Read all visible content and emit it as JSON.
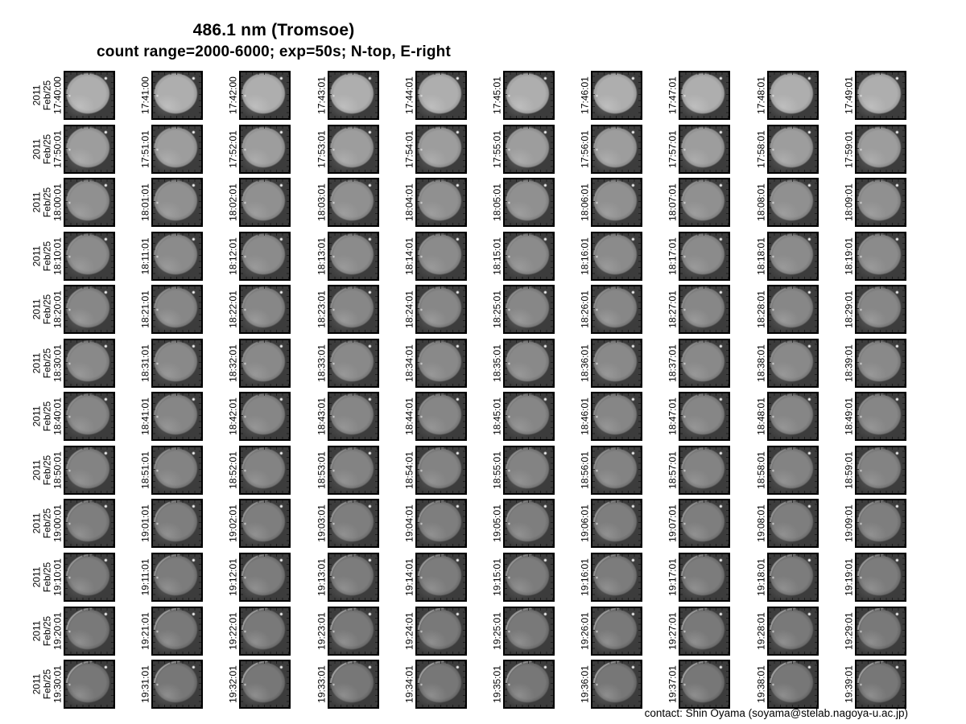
{
  "page": {
    "title": "486.1 nm (Tromsoe)",
    "subtitle": "count range=2000-6000; exp=50s; N-top, E-right",
    "contact": "contact: Shin Oyama (soyama@stelab.nagoya-u.ac.jp)"
  },
  "gallery": {
    "year_label": "2011",
    "date_label": "Feb/25",
    "background_color": "#3c3c3c",
    "row_styles": [
      {
        "disk": "#aeaeae",
        "edge": "#9a9a9a",
        "glow": 0.2,
        "arc": 0.08
      },
      {
        "disk": "#9d9d9d",
        "edge": "#8a8a8a",
        "glow": 0.16,
        "arc": 0.1
      },
      {
        "disk": "#909090",
        "edge": "#7e7e7e",
        "glow": 0.13,
        "arc": 0.14
      },
      {
        "disk": "#8b8b8b",
        "edge": "#7a7a7a",
        "glow": 0.13,
        "arc": 0.15
      },
      {
        "disk": "#878787",
        "edge": "#757575",
        "glow": 0.16,
        "arc": 0.17
      },
      {
        "disk": "#898989",
        "edge": "#777777",
        "glow": 0.13,
        "arc": 0.15
      },
      {
        "disk": "#868686",
        "edge": "#747474",
        "glow": 0.13,
        "arc": 0.17
      },
      {
        "disk": "#838383",
        "edge": "#717171",
        "glow": 0.13,
        "arc": 0.2
      },
      {
        "disk": "#7e7e7e",
        "edge": "#6d6d6d",
        "glow": 0.15,
        "arc": 0.27
      },
      {
        "disk": "#7c7c7c",
        "edge": "#6b6b6b",
        "glow": 0.15,
        "arc": 0.3
      },
      {
        "disk": "#797979",
        "edge": "#686868",
        "glow": 0.17,
        "arc": 0.36
      },
      {
        "disk": "#777777",
        "edge": "#666666",
        "glow": 0.17,
        "arc": 0.4
      }
    ]
  },
  "chart_data": {
    "type": "table",
    "title": "486.1 nm (Tromsoe)",
    "subtitle": "count range=2000-6000; exp=50s; N-top, E-right",
    "station": "Tromsoe",
    "wavelength_nm": 486.1,
    "count_range": [
      2000,
      6000
    ],
    "exposure_s": 50,
    "orientation": "N-top, E-right",
    "date": "2011 Feb/25",
    "grid_shape": {
      "rows": 12,
      "cols": 10
    },
    "timestamps": [
      [
        "17:40:00",
        "17:41:00",
        "17:42:00",
        "17:43:01",
        "17:44:01",
        "17:45:01",
        "17:46:01",
        "17:47:01",
        "17:48:01",
        "17:49:01"
      ],
      [
        "17:50:01",
        "17:51:01",
        "17:52:01",
        "17:53:01",
        "17:54:01",
        "17:55:01",
        "17:56:01",
        "17:57:01",
        "17:58:01",
        "17:59:01"
      ],
      [
        "18:00:01",
        "18:01:01",
        "18:02:01",
        "18:03:01",
        "18:04:01",
        "18:05:01",
        "18:06:01",
        "18:07:01",
        "18:08:01",
        "18:09:01"
      ],
      [
        "18:10:01",
        "18:11:01",
        "18:12:01",
        "18:13:01",
        "18:14:01",
        "18:15:01",
        "18:16:01",
        "18:17:01",
        "18:18:01",
        "18:19:01"
      ],
      [
        "18:20:01",
        "18:21:01",
        "18:22:01",
        "18:23:01",
        "18:24:01",
        "18:25:01",
        "18:26:01",
        "18:27:01",
        "18:28:01",
        "18:29:01"
      ],
      [
        "18:30:01",
        "18:31:01",
        "18:32:01",
        "18:33:01",
        "18:34:01",
        "18:35:01",
        "18:36:01",
        "18:37:01",
        "18:38:01",
        "18:39:01"
      ],
      [
        "18:40:01",
        "18:41:01",
        "18:42:01",
        "18:43:01",
        "18:44:01",
        "18:45:01",
        "18:46:01",
        "18:47:01",
        "18:48:01",
        "18:49:01"
      ],
      [
        "18:50:01",
        "18:51:01",
        "18:52:01",
        "18:53:01",
        "18:54:01",
        "18:55:01",
        "18:56:01",
        "18:57:01",
        "18:58:01",
        "18:59:01"
      ],
      [
        "19:00:01",
        "19:01:01",
        "19:02:01",
        "19:03:01",
        "19:04:01",
        "19:05:01",
        "19:06:01",
        "19:07:01",
        "19:08:01",
        "19:09:01"
      ],
      [
        "19:10:01",
        "19:11:01",
        "19:12:01",
        "19:13:01",
        "19:14:01",
        "19:15:01",
        "19:16:01",
        "19:17:01",
        "19:18:01",
        "19:19:01"
      ],
      [
        "19:20:01",
        "19:21:01",
        "19:22:01",
        "19:23:01",
        "19:24:01",
        "19:25:01",
        "19:26:01",
        "19:27:01",
        "19:28:01",
        "19:29:01"
      ],
      [
        "19:30:01",
        "19:31:01",
        "19:32:01",
        "19:33:01",
        "19:34:01",
        "19:35:01",
        "19:36:01",
        "19:37:01",
        "19:38:01",
        "19:39:01"
      ]
    ]
  }
}
